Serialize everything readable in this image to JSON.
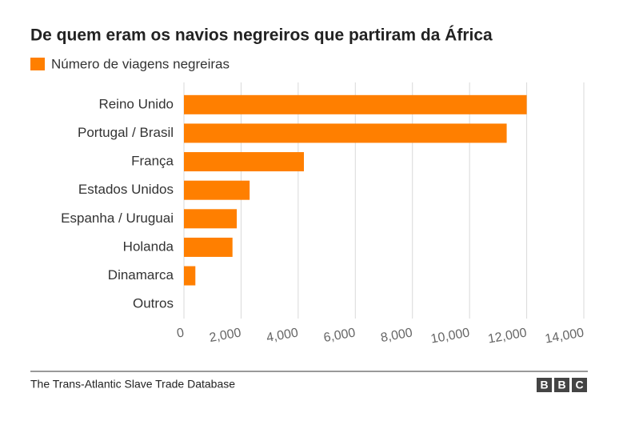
{
  "chart_data": {
    "type": "hbar",
    "title": "De quem eram os navios negreiros que partiram da África",
    "categories": [
      "Reino Unido",
      "Portugal / Brasil",
      "França",
      "Estados Unidos",
      "Espanha / Uruguai",
      "Holanda",
      "Dinamarca",
      "Outros"
    ],
    "series": [
      {
        "name": "Número de viagens negreiras",
        "color": "#ff7f00",
        "values": [
          12000,
          11300,
          4200,
          2300,
          1850,
          1700,
          400,
          0
        ]
      }
    ],
    "xlim": [
      0,
      14000
    ],
    "xticks": [
      0,
      {
        "value": 2000,
        "label": "2,000"
      },
      {
        "value": 4000,
        "label": "4,000"
      },
      {
        "value": 6000,
        "label": "6,000"
      },
      {
        "value": 8000,
        "label": "8,000"
      },
      {
        "value": 10000,
        "label": "10,000"
      },
      {
        "value": 12000,
        "label": "12,000"
      },
      {
        "value": 14000,
        "label": "14,000"
      }
    ],
    "grid": true,
    "source": "The Trans-Atlantic Slave Trade Database",
    "logo": [
      "B",
      "B",
      "C"
    ]
  }
}
